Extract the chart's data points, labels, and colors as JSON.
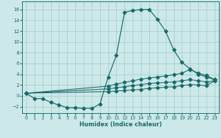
{
  "xlabel": "Humidex (Indice chaleur)",
  "bg_color": "#cce8e8",
  "grid_color": "#aacece",
  "line_color": "#1a6b6b",
  "xlim": [
    -0.5,
    23.5
  ],
  "ylim": [
    -3.2,
    17.5
  ],
  "xticks": [
    0,
    1,
    2,
    3,
    4,
    5,
    6,
    7,
    8,
    9,
    10,
    11,
    12,
    13,
    14,
    15,
    16,
    17,
    18,
    19,
    20,
    21,
    22,
    23
  ],
  "yticks": [
    -2,
    0,
    2,
    4,
    6,
    8,
    10,
    12,
    14,
    16
  ],
  "line1_x": [
    0,
    1,
    2,
    3,
    4,
    5,
    6,
    7,
    8,
    9,
    10,
    11,
    12,
    13,
    14,
    15,
    16,
    17,
    18,
    19,
    20,
    21,
    22,
    23
  ],
  "line1_y": [
    0.5,
    -0.5,
    -0.5,
    -1.2,
    -1.7,
    -2.2,
    -2.2,
    -2.3,
    -2.3,
    -1.5,
    3.5,
    7.5,
    15.5,
    15.8,
    16.0,
    16.0,
    14.2,
    12.0,
    8.5,
    6.2,
    5.0,
    4.0,
    3.5,
    3.0
  ],
  "line2_x": [
    0,
    10,
    11,
    12,
    13,
    14,
    15,
    16,
    17,
    18,
    19,
    20,
    21,
    22,
    23
  ],
  "line2_y": [
    0.5,
    1.8,
    2.2,
    2.5,
    2.8,
    3.1,
    3.3,
    3.5,
    3.7,
    3.9,
    4.2,
    4.9,
    4.2,
    3.8,
    3.0
  ],
  "line3_x": [
    0,
    10,
    11,
    12,
    13,
    14,
    15,
    16,
    17,
    18,
    19,
    20,
    21,
    22,
    23
  ],
  "line3_y": [
    0.5,
    1.3,
    1.5,
    1.7,
    1.9,
    2.1,
    2.3,
    2.4,
    2.5,
    2.6,
    2.8,
    3.0,
    2.8,
    2.6,
    2.8
  ],
  "line4_x": [
    0,
    10,
    11,
    12,
    13,
    14,
    15,
    16,
    17,
    18,
    19,
    20,
    21,
    22,
    23
  ],
  "line4_y": [
    0.5,
    0.8,
    0.9,
    1.0,
    1.1,
    1.2,
    1.4,
    1.5,
    1.6,
    1.7,
    1.9,
    2.1,
    2.0,
    1.9,
    2.8
  ],
  "markersize": 2.5
}
